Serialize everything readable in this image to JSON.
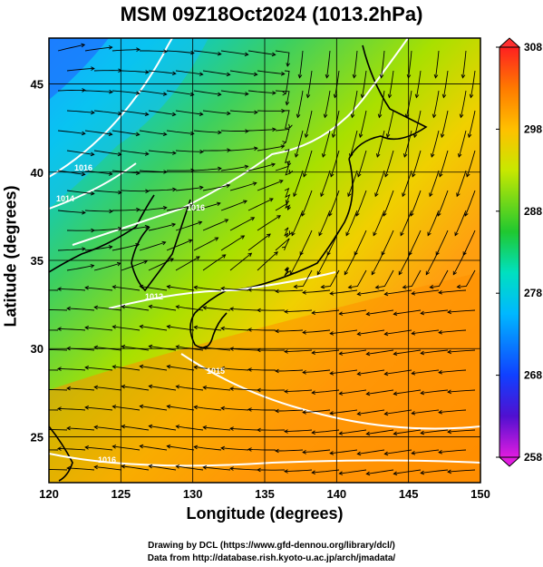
{
  "title": "MSM 09Z18Oct2024 (1013.2hPa)",
  "x_axis": {
    "label": "Longitude (degrees)",
    "min": 120,
    "max": 150,
    "ticks": [
      "120",
      "125",
      "130",
      "135",
      "140",
      "145",
      "150"
    ]
  },
  "y_axis": {
    "label": "Latitude  (degrees)",
    "min": 22.4,
    "max": 47.6,
    "ticks": [
      "25",
      "30",
      "35",
      "40",
      "45"
    ]
  },
  "colorbar": {
    "min": 258,
    "max": 308,
    "ticks": [
      "258",
      "268",
      "278",
      "288",
      "298",
      "308"
    ]
  },
  "contour_labels": [
    "1016",
    "1014",
    "1016",
    "1012",
    "1015",
    "1016"
  ],
  "credit_line1": "Drawing by DCL (https://www.gfd-dennou.org/library/dcl/)",
  "credit_line2": "Data from http://database.rish.kyoto-u.ac.jp/arch/jmadata/",
  "colors": {
    "cold": "#1e90ff",
    "cool": "#00d4c8",
    "mild": "#32cd32",
    "warm": "#d7e600",
    "hot": "#ff8c00",
    "coast": "#000000",
    "contour": "#ffffff"
  }
}
